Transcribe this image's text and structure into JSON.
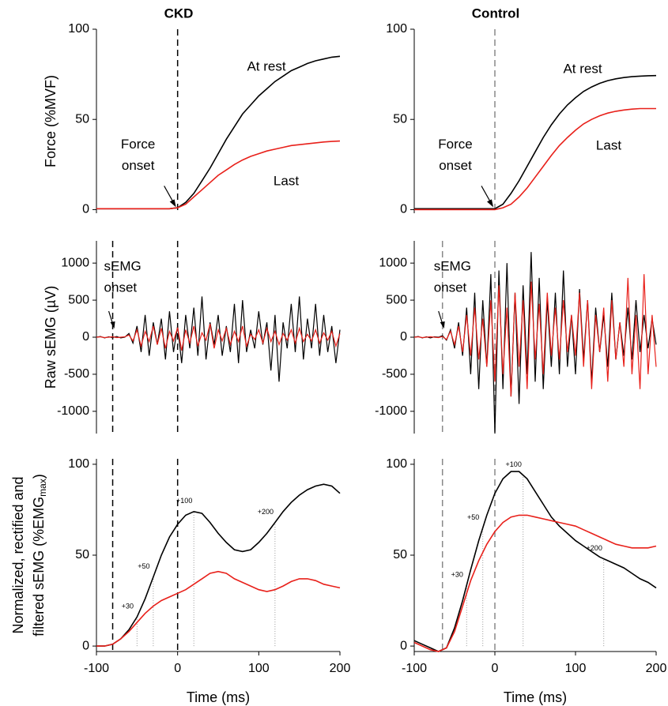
{
  "chart_data": [
    {
      "type": "line",
      "title": "CKD",
      "ylabel": "Force (%MVF)",
      "xlim": [
        -100,
        200
      ],
      "ylim": [
        -2,
        100
      ],
      "yticks": [
        0,
        50,
        100
      ],
      "x": [
        -100,
        -90,
        -80,
        -70,
        -60,
        -50,
        -40,
        -30,
        -20,
        -10,
        0,
        10,
        20,
        30,
        40,
        50,
        60,
        70,
        80,
        90,
        100,
        110,
        120,
        130,
        140,
        150,
        160,
        170,
        180,
        190,
        200
      ],
      "series": [
        {
          "name": "At rest",
          "color": "#000000",
          "values": [
            0.5,
            0.5,
            0.5,
            0.5,
            0.5,
            0.5,
            0.5,
            0.5,
            0.5,
            0.5,
            1,
            4,
            9,
            16,
            23,
            31,
            39,
            46,
            53,
            58,
            63,
            67,
            71,
            74,
            77,
            79,
            81,
            82.5,
            83.5,
            84.5,
            85
          ]
        },
        {
          "name": "Last",
          "color": "#e8201a",
          "values": [
            0.5,
            0.5,
            0.5,
            0.5,
            0.5,
            0.5,
            0.5,
            0.5,
            0.5,
            0.5,
            1,
            3,
            7,
            11,
            15,
            19,
            22,
            25,
            27.5,
            29.5,
            31,
            32.5,
            33.5,
            34.5,
            35.5,
            36,
            36.5,
            37,
            37.5,
            37.8,
            38
          ]
        }
      ],
      "vlines": [
        0
      ],
      "vline_color": "#000000",
      "annotations": [
        {
          "lines": [
            "Force",
            "onset"
          ]
        }
      ]
    },
    {
      "type": "line",
      "title": "Control",
      "xlim": [
        -100,
        200
      ],
      "ylim": [
        -2,
        100
      ],
      "yticks": [
        0,
        50,
        100
      ],
      "x": [
        -100,
        -90,
        -80,
        -70,
        -60,
        -50,
        -40,
        -30,
        -20,
        -10,
        0,
        10,
        20,
        30,
        40,
        50,
        60,
        70,
        80,
        90,
        100,
        110,
        120,
        130,
        140,
        150,
        160,
        170,
        180,
        190,
        200
      ],
      "series": [
        {
          "name": "At rest",
          "color": "#000000",
          "values": [
            0.5,
            0.5,
            0.5,
            0.5,
            0.5,
            0.5,
            0.5,
            0.5,
            0.5,
            0.5,
            0.5,
            3,
            9,
            16,
            24,
            32,
            40,
            47,
            53,
            58,
            62,
            65.5,
            68,
            70,
            71.5,
            72.5,
            73.2,
            73.7,
            74,
            74.2,
            74.3
          ]
        },
        {
          "name": "Last",
          "color": "#e8201a",
          "values": [
            0,
            0,
            0,
            0,
            0,
            0,
            0,
            0,
            0,
            0,
            0,
            1,
            3,
            7,
            12,
            18,
            24,
            30,
            35.5,
            40,
            44,
            47.5,
            50,
            52,
            53.5,
            54.5,
            55.2,
            55.7,
            56,
            56,
            56
          ]
        }
      ],
      "vlines": [
        0
      ],
      "vline_color": "#888888",
      "annotations": [
        {
          "lines": [
            "Force",
            "onset"
          ]
        }
      ]
    },
    {
      "type": "line",
      "ylabel": "Raw sEMG (µV)",
      "xlim": [
        -100,
        200
      ],
      "ylim": [
        -1300,
        1300
      ],
      "yticks": [
        -1000,
        -500,
        0,
        500,
        1000
      ],
      "x": [
        -100,
        -95,
        -90,
        -85,
        -80,
        -75,
        -70,
        -65,
        -60,
        -55,
        -50,
        -45,
        -40,
        -35,
        -30,
        -25,
        -20,
        -15,
        -10,
        -5,
        0,
        5,
        10,
        15,
        20,
        25,
        30,
        35,
        40,
        45,
        50,
        55,
        60,
        65,
        70,
        75,
        80,
        85,
        90,
        95,
        100,
        105,
        110,
        115,
        120,
        125,
        130,
        135,
        140,
        145,
        150,
        155,
        160,
        165,
        170,
        175,
        180,
        185,
        190,
        195,
        200
      ],
      "series": [
        {
          "color": "#000000",
          "values": [
            0,
            10,
            -10,
            5,
            -5,
            10,
            -10,
            0,
            50,
            -80,
            150,
            -200,
            300,
            -250,
            200,
            -100,
            250,
            -300,
            350,
            -200,
            150,
            -350,
            300,
            -150,
            400,
            -250,
            550,
            -300,
            200,
            -100,
            300,
            -250,
            150,
            -200,
            450,
            -350,
            500,
            -200,
            100,
            -150,
            350,
            -100,
            200,
            -450,
            300,
            -600,
            200,
            -150,
            450,
            -200,
            550,
            -300,
            250,
            -150,
            450,
            -250,
            300,
            -200,
            150,
            -350,
            100
          ]
        },
        {
          "color": "#e8201a",
          "values": [
            0,
            5,
            -5,
            0,
            5,
            -5,
            0,
            5,
            30,
            -50,
            100,
            -120,
            80,
            -60,
            150,
            -100,
            120,
            -150,
            80,
            -50,
            130,
            -180,
            100,
            -80,
            150,
            -120,
            60,
            -40,
            180,
            -150,
            100,
            -50,
            120,
            -100,
            80,
            -60,
            150,
            -120,
            40,
            -30,
            100,
            -80,
            120,
            -60,
            80,
            -100,
            50,
            -40,
            100,
            -80,
            120,
            -60,
            40,
            -50,
            100,
            -80,
            60,
            -40,
            80,
            -120,
            50
          ]
        }
      ],
      "vlines": [
        -80,
        0
      ],
      "vline_color": "#000000",
      "annotations": [
        {
          "lines": [
            "sEMG",
            "onset"
          ]
        }
      ]
    },
    {
      "type": "line",
      "xlim": [
        -100,
        200
      ],
      "ylim": [
        -1300,
        1300
      ],
      "yticks": [
        -1000,
        -500,
        0,
        500,
        1000
      ],
      "x": [
        -100,
        -95,
        -90,
        -85,
        -80,
        -75,
        -70,
        -65,
        -60,
        -55,
        -50,
        -45,
        -40,
        -35,
        -30,
        -25,
        -20,
        -15,
        -10,
        -5,
        0,
        5,
        10,
        15,
        20,
        25,
        30,
        35,
        40,
        45,
        50,
        55,
        60,
        65,
        70,
        75,
        80,
        85,
        90,
        95,
        100,
        105,
        110,
        115,
        120,
        125,
        130,
        135,
        140,
        145,
        150,
        155,
        160,
        165,
        170,
        175,
        180,
        185,
        190,
        195,
        200
      ],
      "series": [
        {
          "color": "#000000",
          "values": [
            0,
            10,
            -10,
            5,
            -10,
            5,
            0,
            20,
            -40,
            100,
            -150,
            200,
            -250,
            400,
            -500,
            600,
            -700,
            500,
            -400,
            850,
            -1300,
            900,
            -700,
            1000,
            -800,
            600,
            -900,
            700,
            -500,
            1150,
            -600,
            800,
            -700,
            500,
            -400,
            600,
            -500,
            900,
            -400,
            300,
            -500,
            650,
            -300,
            500,
            -600,
            400,
            -200,
            300,
            -400,
            600,
            -300,
            200,
            -250,
            400,
            -300,
            500,
            -200,
            300,
            -150,
            250,
            -100
          ]
        },
        {
          "color": "#e8201a",
          "values": [
            0,
            5,
            -5,
            0,
            5,
            0,
            -5,
            10,
            -30,
            80,
            -100,
            150,
            -200,
            300,
            -250,
            400,
            -300,
            250,
            -400,
            500,
            -600,
            700,
            -500,
            400,
            -800,
            600,
            -400,
            500,
            -700,
            750,
            -300,
            450,
            -500,
            600,
            -250,
            400,
            -300,
            500,
            -200,
            300,
            -250,
            600,
            -400,
            500,
            -700,
            300,
            -200,
            400,
            -600,
            500,
            -300,
            200,
            -400,
            800,
            -500,
            300,
            -700,
            850,
            -500,
            300,
            -400
          ]
        }
      ],
      "vlines": [
        -65,
        0
      ],
      "vline_color": "#888888",
      "annotations": [
        {
          "lines": [
            "sEMG",
            "onset"
          ]
        }
      ]
    },
    {
      "type": "line",
      "ylabel_parts": {
        "line1": "Normalized, rectified and",
        "line2": "filtered sEMG (%EMG",
        "sub": "max",
        "end": ")"
      },
      "xlabel": "Time (ms)",
      "xlim": [
        -100,
        200
      ],
      "ylim": [
        -3,
        103
      ],
      "yticks": [
        0,
        50,
        100
      ],
      "xticks": [
        -100,
        0,
        100,
        200
      ],
      "x": [
        -100,
        -90,
        -80,
        -70,
        -60,
        -50,
        -40,
        -30,
        -20,
        -10,
        0,
        10,
        20,
        30,
        40,
        50,
        60,
        70,
        80,
        90,
        100,
        110,
        120,
        130,
        140,
        150,
        160,
        170,
        180,
        190,
        200
      ],
      "series": [
        {
          "color": "#000000",
          "values": [
            0,
            0,
            1,
            4,
            9,
            16,
            26,
            38,
            50,
            60,
            67,
            72,
            74,
            73,
            68,
            62,
            57,
            53,
            52,
            53,
            57,
            62,
            68,
            74,
            79,
            83,
            86,
            88,
            89,
            88,
            84
          ]
        },
        {
          "color": "#e8201a",
          "values": [
            0,
            0,
            1,
            4,
            8,
            13,
            18,
            22,
            25,
            27,
            29,
            31,
            34,
            37,
            40,
            41,
            40,
            37,
            35,
            33,
            31,
            30,
            31,
            33,
            35.5,
            37,
            37,
            36,
            34,
            33,
            32
          ]
        }
      ],
      "vlines": [
        -80,
        0
      ],
      "vline_color": "#000000",
      "markers": [
        {
          "x": -50,
          "label": "+30"
        },
        {
          "x": -30,
          "label": "+50"
        },
        {
          "x": 20,
          "label": "+100"
        },
        {
          "x": 120,
          "label": "+200"
        }
      ]
    },
    {
      "type": "line",
      "xlabel": "Time (ms)",
      "xlim": [
        -100,
        200
      ],
      "ylim": [
        -3,
        103
      ],
      "yticks": [
        0,
        50,
        100
      ],
      "xticks": [
        -100,
        0,
        100,
        200
      ],
      "x": [
        -100,
        -90,
        -80,
        -70,
        -60,
        -50,
        -40,
        -30,
        -20,
        -10,
        0,
        10,
        20,
        30,
        40,
        50,
        60,
        70,
        80,
        90,
        100,
        110,
        120,
        130,
        140,
        150,
        160,
        170,
        180,
        190,
        200
      ],
      "series": [
        {
          "color": "#000000",
          "values": [
            3,
            1,
            -1,
            -3,
            -1,
            10,
            25,
            42,
            58,
            72,
            84,
            92,
            96,
            96,
            92,
            85,
            78,
            71,
            66,
            62,
            58,
            55,
            52,
            49,
            47,
            45,
            43,
            40,
            37,
            35,
            32
          ]
        },
        {
          "color": "#e8201a",
          "values": [
            2,
            0,
            -2,
            -3,
            -1,
            8,
            22,
            36,
            47,
            56,
            63,
            68,
            71,
            72,
            72,
            71,
            70,
            69,
            68,
            67,
            66,
            64,
            62,
            60,
            58,
            56,
            55,
            54,
            54,
            54,
            55
          ]
        }
      ],
      "vlines": [
        -65,
        0
      ],
      "vline_color": "#888888",
      "markers": [
        {
          "x": -35,
          "label": "+30"
        },
        {
          "x": -15,
          "label": "+50"
        },
        {
          "x": 35,
          "label": "+100"
        },
        {
          "x": 135,
          "label": "+200"
        }
      ]
    }
  ]
}
